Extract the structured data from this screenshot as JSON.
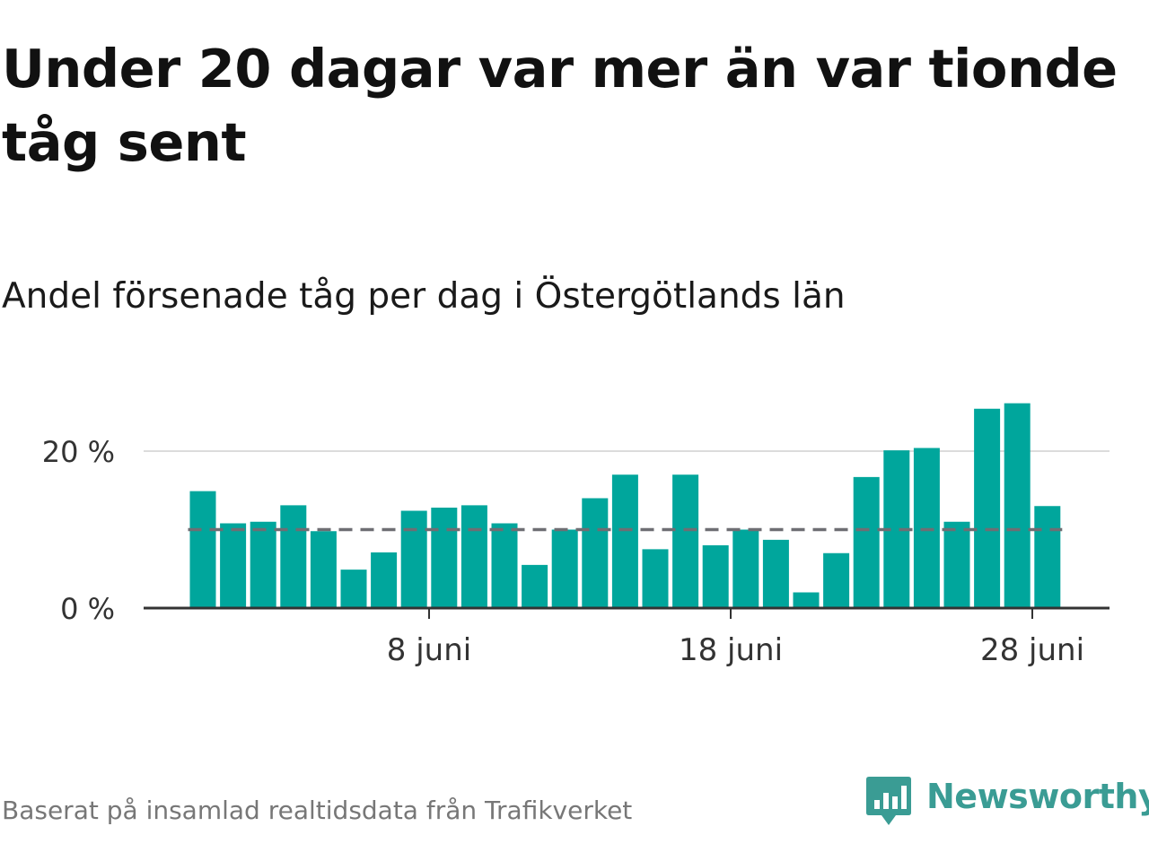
{
  "title": "Under 20 dagar var mer än var tionde tåg sent",
  "subtitle": "Andel försenade tåg per dag i Östergötlands län",
  "source": "Baserat på insamlad realtidsdata från Trafikverket",
  "brand": {
    "name": "Newsworthy",
    "icon": "newsworthy-logo-icon"
  },
  "colors": {
    "bar": "#00a69c",
    "reference_line": "#6e6e73",
    "grid": "#dcdcdc",
    "axis": "#333333",
    "brand": "#3a9c94"
  },
  "chart_data": {
    "type": "bar",
    "xlabel": "",
    "ylabel": "",
    "ylim": [
      0,
      27
    ],
    "grid": true,
    "x_tick_labels": [
      {
        "day": 8,
        "label": "8 juni"
      },
      {
        "day": 18,
        "label": "18 juni"
      },
      {
        "day": 28,
        "label": "28 juni"
      }
    ],
    "y_tick_labels": [
      {
        "value": 0,
        "label": "0 %"
      },
      {
        "value": 20,
        "label": "20 %"
      }
    ],
    "reference_line": {
      "value": 10,
      "style": "dashed"
    },
    "days": [
      1,
      2,
      3,
      4,
      5,
      6,
      7,
      8,
      9,
      10,
      11,
      12,
      13,
      14,
      15,
      16,
      17,
      18,
      19,
      20,
      21,
      22,
      23,
      24,
      25,
      26,
      27,
      28,
      29
    ],
    "values": [
      14.9,
      10.8,
      11.0,
      13.1,
      9.8,
      4.9,
      7.1,
      12.4,
      12.8,
      13.1,
      10.8,
      5.5,
      10.0,
      14.0,
      17.0,
      7.5,
      17.0,
      8.0,
      10.0,
      8.7,
      2.0,
      7.0,
      16.7,
      20.1,
      20.4,
      11.0,
      25.4,
      26.1,
      13.0
    ]
  }
}
